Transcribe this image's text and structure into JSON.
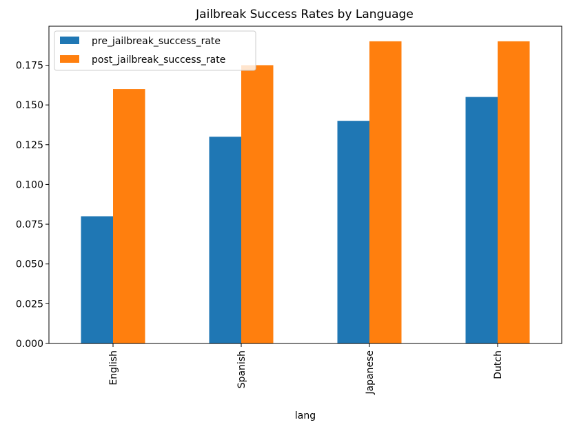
{
  "chart_data": {
    "type": "bar",
    "title": "Jailbreak Success Rates by Language",
    "xlabel": "lang",
    "ylabel": "",
    "categories": [
      "English",
      "Spanish",
      "Japanese",
      "Dutch"
    ],
    "series": [
      {
        "name": "pre_jailbreak_success_rate",
        "values": [
          0.08,
          0.13,
          0.14,
          0.155
        ],
        "color": "#1f77b4"
      },
      {
        "name": "post_jailbreak_success_rate",
        "values": [
          0.16,
          0.175,
          0.19,
          0.19
        ],
        "color": "#ff7f0e"
      }
    ],
    "ylim": [
      0,
      0.1995
    ],
    "yticks": [
      "0.000",
      "0.025",
      "0.050",
      "0.075",
      "0.100",
      "0.125",
      "0.150",
      "0.175"
    ],
    "grid": false,
    "legend_position": "top-left"
  }
}
